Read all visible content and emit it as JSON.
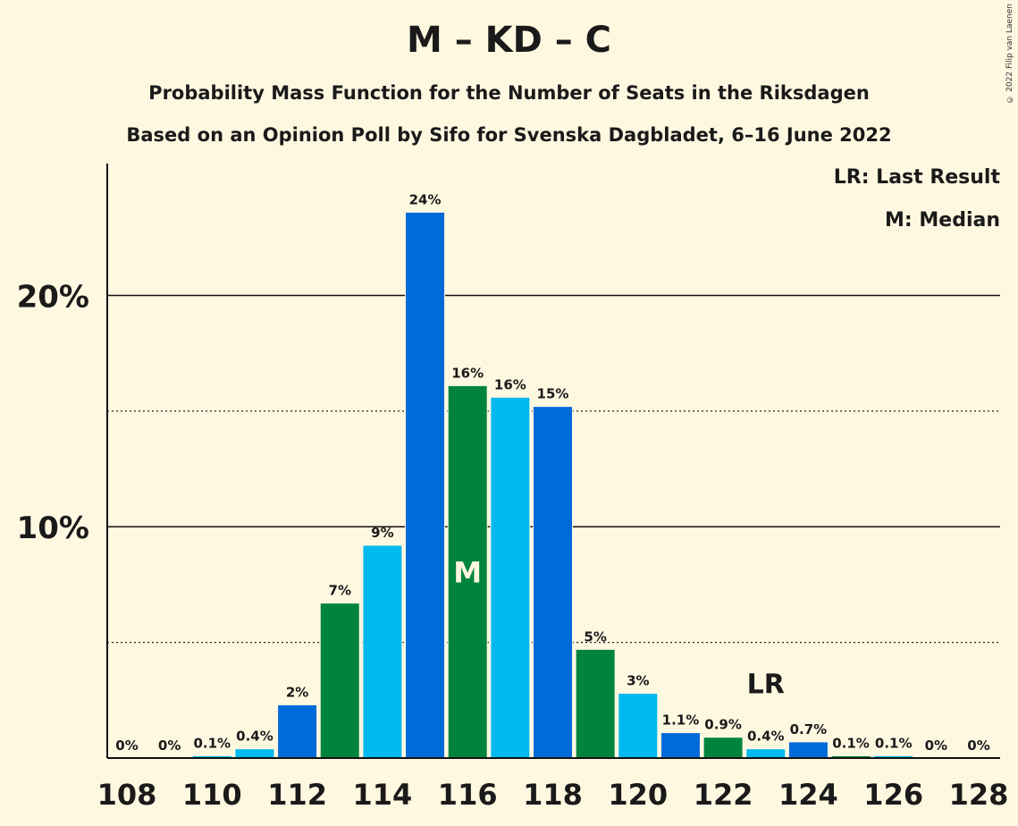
{
  "title": "M – KD – C",
  "subtitle": "Probability Mass Function for the Number of Seats in the Riksdagen",
  "subtitle2": "Based on an Opinion Poll by Sifo for Svenska Dagbladet, 6–16 June 2022",
  "copyright": "© 2022 Filip van Laenen",
  "legend": {
    "last_result": "LR: Last Result",
    "median": "M: Median"
  },
  "colors": {
    "background": "#fff8e1",
    "blue": "#006ad8",
    "green": "#00843d",
    "lightblue": "#00b9ee"
  },
  "chart_data": {
    "type": "bar",
    "title": "M – KD – C",
    "xlabel": "",
    "ylabel": "",
    "x": [
      108,
      109,
      110,
      111,
      112,
      113,
      114,
      115,
      116,
      117,
      118,
      119,
      120,
      121,
      122,
      123,
      124,
      125,
      126,
      127,
      128
    ],
    "values": [
      0,
      0,
      0.1,
      0.4,
      2.3,
      6.7,
      9.2,
      23.6,
      16.1,
      15.6,
      15.2,
      4.7,
      2.8,
      1.1,
      0.9,
      0.4,
      0.7,
      0.1,
      0.1,
      0,
      0
    ],
    "data_labels": [
      "0%",
      "0%",
      "0.1%",
      "0.4%",
      "2%",
      "7%",
      "9%",
      "24%",
      "16%",
      "16%",
      "15%",
      "5%",
      "3%",
      "1.1%",
      "0.9%",
      "0.4%",
      "0.7%",
      "0.1%",
      "0.1%",
      "0%",
      "0%"
    ],
    "bar_colors": [
      "blue",
      "green",
      "lightblue",
      "lightblue",
      "blue",
      "green",
      "lightblue",
      "blue",
      "green",
      "lightblue",
      "blue",
      "green",
      "lightblue",
      "blue",
      "green",
      "lightblue",
      "blue",
      "green",
      "lightblue",
      "blue",
      "green"
    ],
    "x_tick_labels": [
      "108",
      "110",
      "112",
      "114",
      "116",
      "118",
      "120",
      "122",
      "124",
      "126",
      "128"
    ],
    "x_tick_values": [
      108,
      110,
      112,
      114,
      116,
      118,
      120,
      122,
      124,
      126,
      128
    ],
    "y_tick_labels": [
      "10%",
      "20%"
    ],
    "y_tick_values": [
      10,
      20
    ],
    "y_dotted_lines": [
      5,
      15
    ],
    "ylim": [
      0,
      25.7
    ],
    "median_seat": 116,
    "median_label": "M",
    "last_result_seat": 123,
    "last_result_label": "LR",
    "grid": true
  }
}
